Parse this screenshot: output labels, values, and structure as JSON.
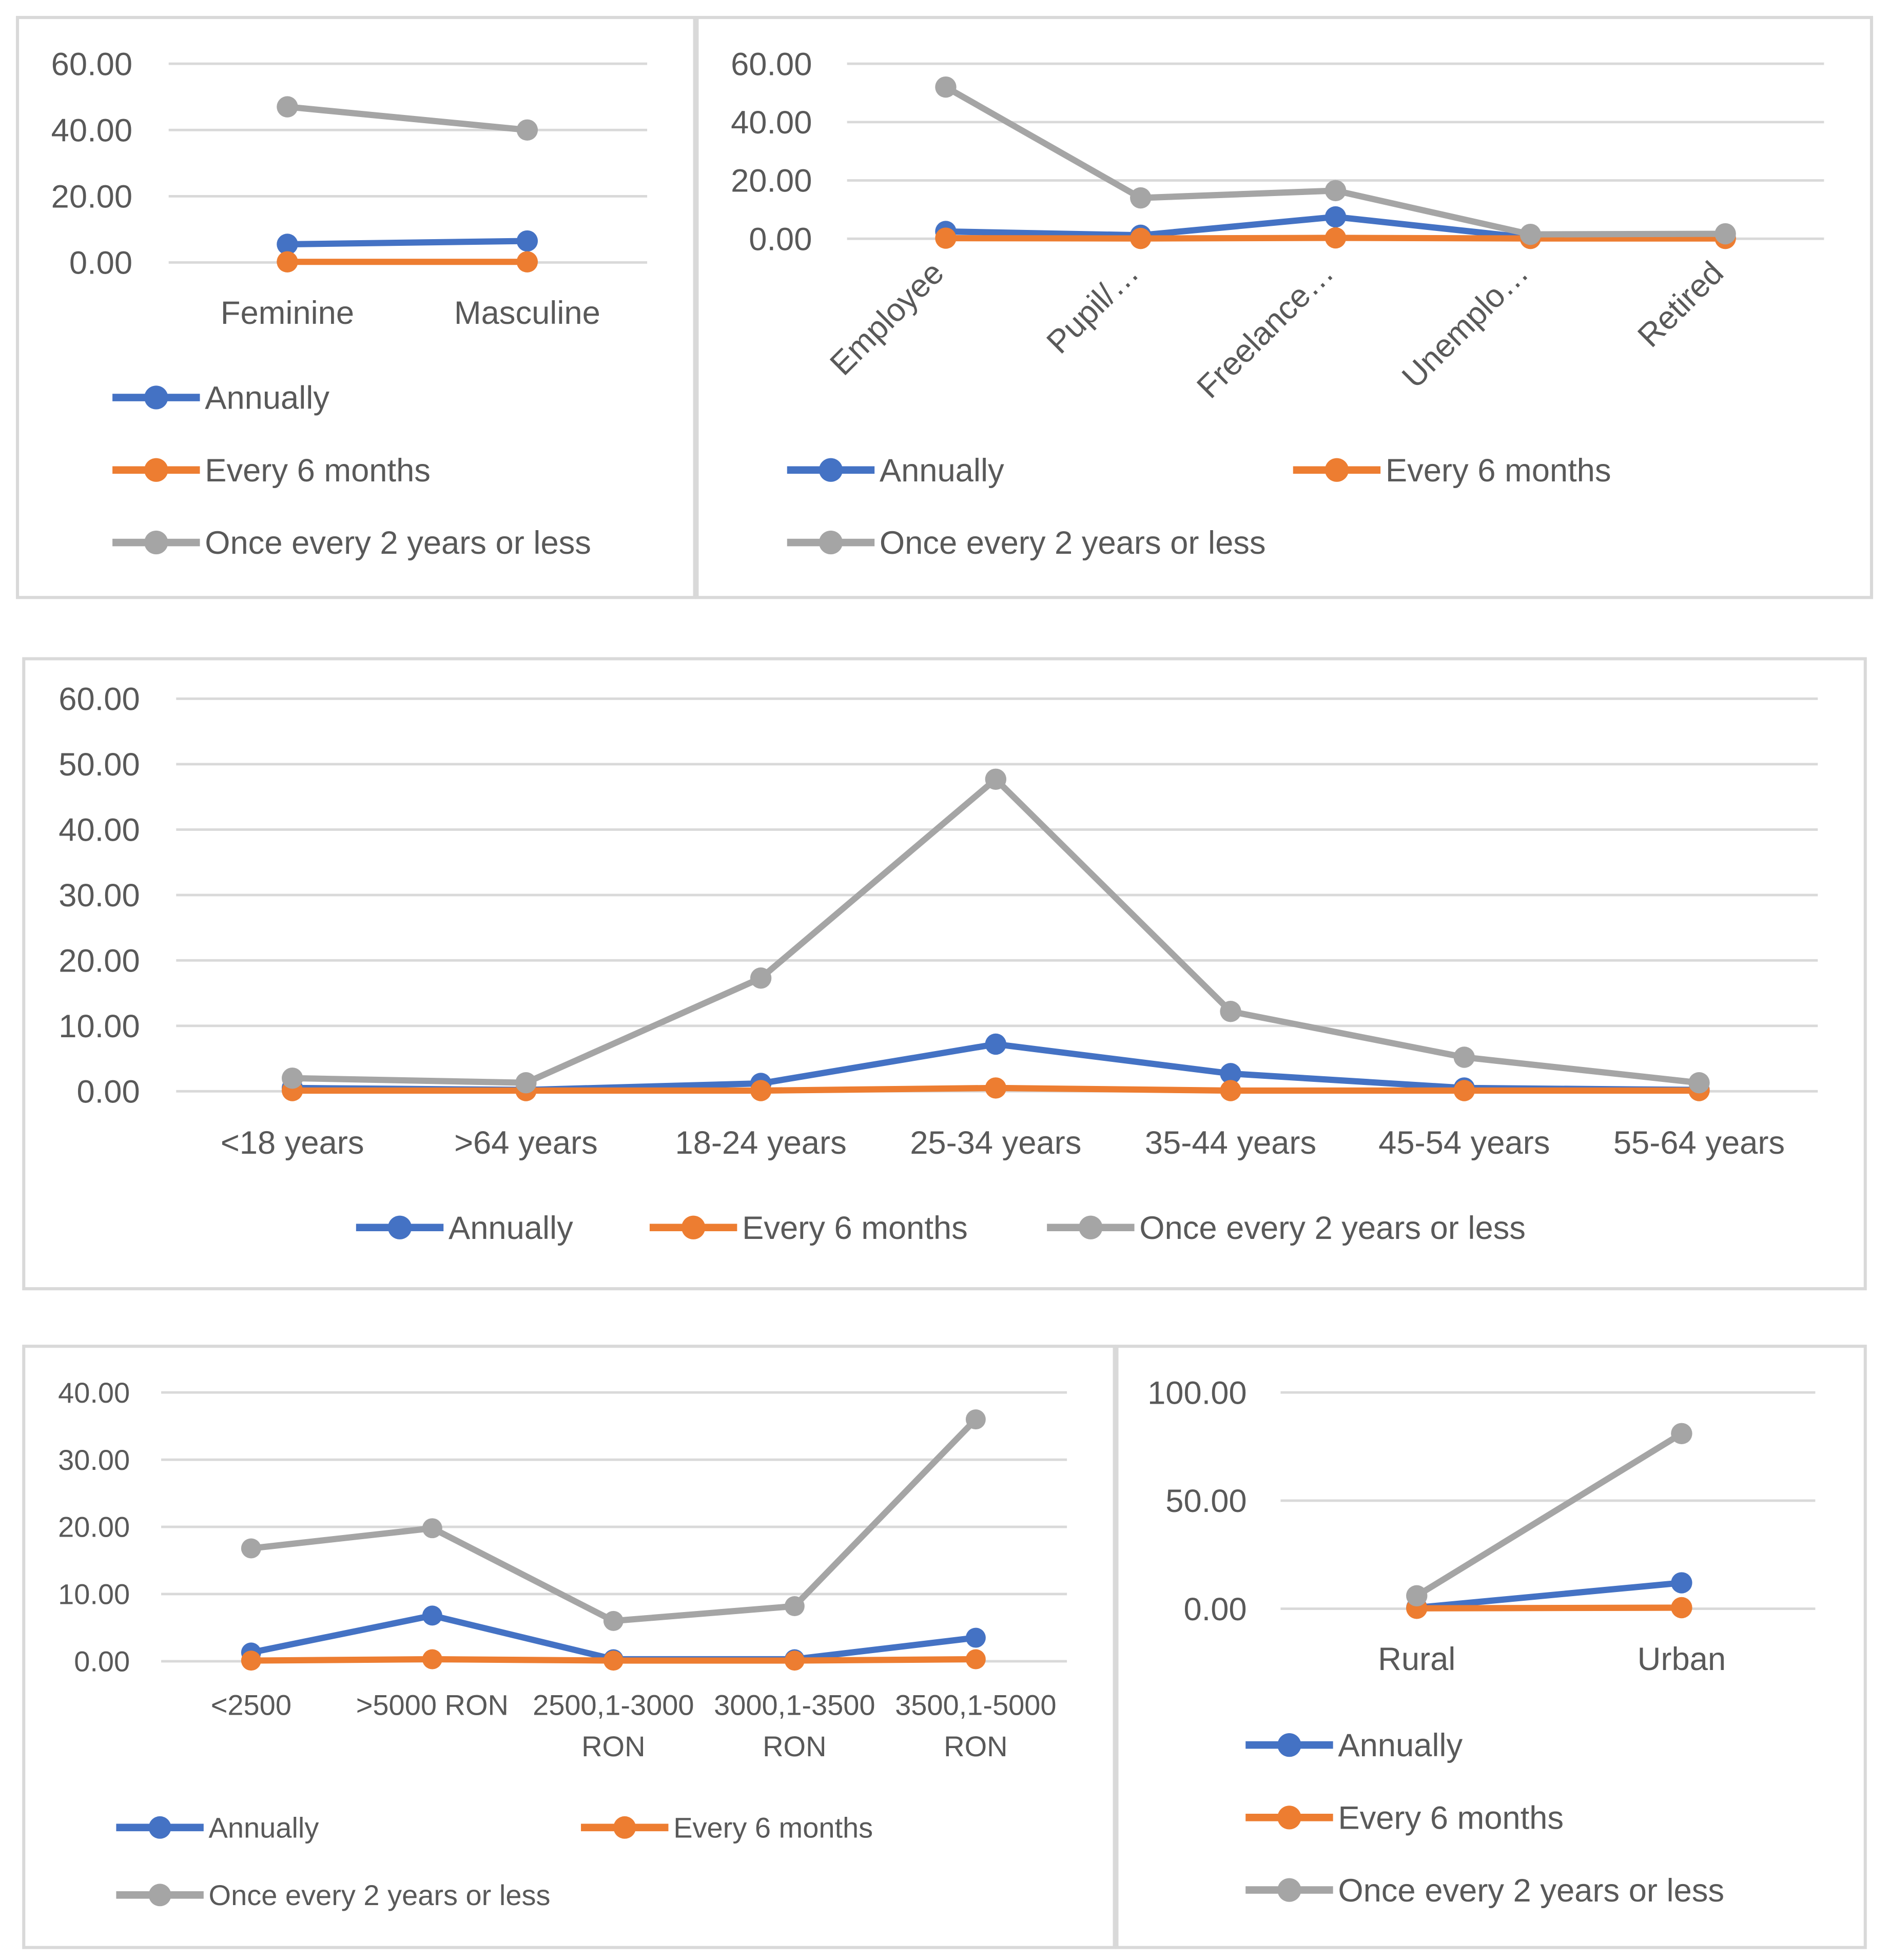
{
  "series_colors": {
    "Annually": "#4472C4",
    "Every 6 months": "#ED7D31",
    "Once every 2 years or less": "#A5A5A5"
  },
  "colors": {
    "grid": "#D9D9D9",
    "panel_border": "#D9D9D9",
    "text": "#595959"
  },
  "chart_data": [
    {
      "id": "gender",
      "type": "line",
      "categories": [
        "Feminine",
        "Masculine"
      ],
      "ylim": [
        0,
        60
      ],
      "yticks": [
        "0.00",
        "20.00",
        "40.00",
        "60.00"
      ],
      "series": [
        {
          "name": "Annually",
          "values": [
            5.5,
            6.5
          ]
        },
        {
          "name": "Every 6 months",
          "values": [
            0.2,
            0.2
          ]
        },
        {
          "name": "Once every 2 years or less",
          "values": [
            47,
            40
          ]
        }
      ],
      "legend": "bottom-stacked"
    },
    {
      "id": "occupation",
      "type": "line",
      "categories": [
        "Employee",
        "Pupil/…",
        "Freelance…",
        "Unemplo…",
        "Retired"
      ],
      "ylim": [
        0,
        60
      ],
      "yticks": [
        "0.00",
        "20.00",
        "40.00",
        "60.00"
      ],
      "series": [
        {
          "name": "Annually",
          "values": [
            2.5,
            1.2,
            7.5,
            0.3,
            0.3
          ]
        },
        {
          "name": "Every 6 months",
          "values": [
            0.2,
            0.1,
            0.3,
            0.1,
            0.1
          ]
        },
        {
          "name": "Once every 2 years or less",
          "values": [
            52,
            14,
            16.5,
            1.5,
            1.7
          ]
        }
      ],
      "legend": "bottom"
    },
    {
      "id": "age",
      "type": "line",
      "categories": [
        "<18 years",
        ">64 years",
        "18-24 years",
        "25-34 years",
        "35-44 years",
        "45-54 years",
        "55-64 years"
      ],
      "ylim": [
        0,
        60
      ],
      "yticks": [
        "0.00",
        "10.00",
        "20.00",
        "30.00",
        "40.00",
        "50.00",
        "60.00"
      ],
      "series": [
        {
          "name": "Annually",
          "values": [
            0.5,
            0.2,
            1.2,
            7.2,
            2.7,
            0.5,
            0.2
          ]
        },
        {
          "name": "Every 6 months",
          "values": [
            0.1,
            0.1,
            0.1,
            0.5,
            0.1,
            0.1,
            0.1
          ]
        },
        {
          "name": "Once every 2 years or less",
          "values": [
            2,
            1.3,
            17.3,
            47.7,
            12.2,
            5.2,
            1.3
          ]
        }
      ],
      "legend": "bottom-row"
    },
    {
      "id": "income",
      "type": "line",
      "categories": [
        [
          "<2500"
        ],
        [
          ">5000 RON"
        ],
        [
          "2500,1-3000",
          "RON"
        ],
        [
          "3000,1-3500",
          "RON"
        ],
        [
          "3500,1-5000",
          "RON"
        ]
      ],
      "ylim": [
        0,
        40
      ],
      "yticks": [
        "0.00",
        "10.00",
        "20.00",
        "30.00",
        "40.00"
      ],
      "series": [
        {
          "name": "Annually",
          "values": [
            1.3,
            6.8,
            0.3,
            0.3,
            3.5
          ]
        },
        {
          "name": "Every 6 months",
          "values": [
            0.1,
            0.3,
            0.1,
            0.1,
            0.3
          ]
        },
        {
          "name": "Once every 2 years or less",
          "values": [
            16.8,
            19.8,
            6,
            8.2,
            36
          ]
        }
      ],
      "legend": "bottom"
    },
    {
      "id": "residence",
      "type": "line",
      "categories": [
        "Rural",
        "Urban"
      ],
      "ylim": [
        0,
        100
      ],
      "yticks": [
        "0.00",
        "50.00",
        "100.00"
      ],
      "series": [
        {
          "name": "Annually",
          "values": [
            0.5,
            12
          ]
        },
        {
          "name": "Every 6 months",
          "values": [
            0.2,
            0.5
          ]
        },
        {
          "name": "Once every 2 years or less",
          "values": [
            6,
            81
          ]
        }
      ],
      "legend": "bottom-stacked"
    }
  ]
}
